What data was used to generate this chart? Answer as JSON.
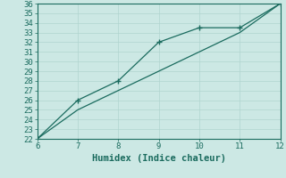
{
  "line1_x": [
    6,
    7,
    8,
    9,
    10,
    11,
    12
  ],
  "line1_y": [
    22,
    25,
    27,
    29,
    31,
    33,
    36
  ],
  "line2_x": [
    6,
    7,
    8,
    9,
    10,
    11,
    12
  ],
  "line2_y": [
    22,
    26,
    28,
    32,
    33.5,
    33.5,
    36
  ],
  "line_color": "#1a6b5e",
  "bg_color": "#cce8e4",
  "grid_color": "#b0d4cf",
  "xlabel": "Humidex (Indice chaleur)",
  "xlim": [
    6,
    12
  ],
  "ylim": [
    22,
    36
  ],
  "xticks": [
    6,
    7,
    8,
    9,
    10,
    11,
    12
  ],
  "yticks": [
    22,
    23,
    24,
    25,
    26,
    27,
    28,
    29,
    30,
    31,
    32,
    33,
    34,
    35,
    36
  ],
  "xlabel_fontsize": 7.5,
  "tick_fontsize": 6.5
}
